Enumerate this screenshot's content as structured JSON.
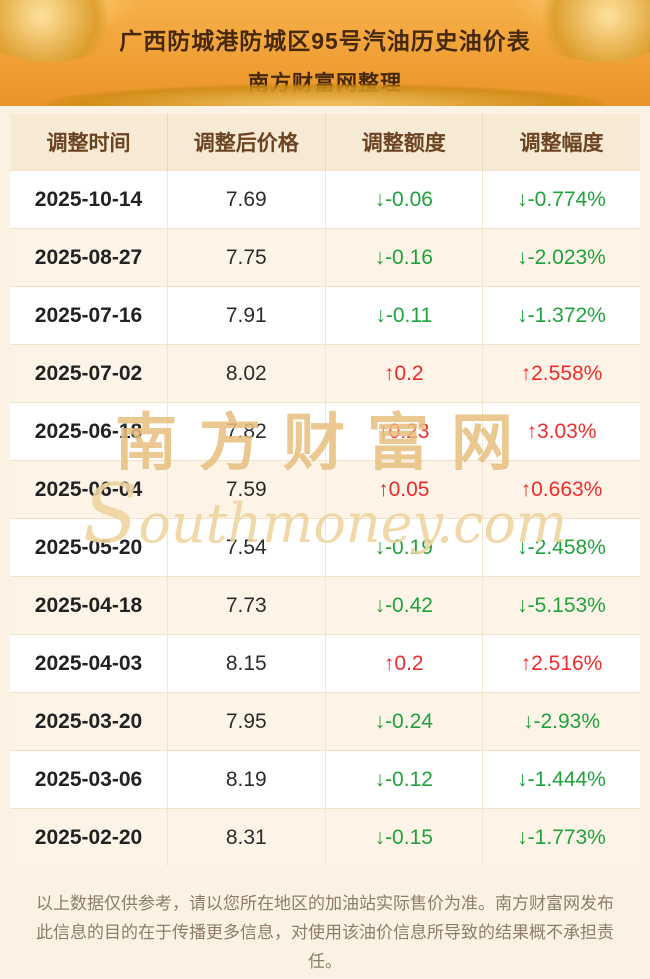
{
  "header": {
    "title": "广西防城港防城区95号汽油历史油价表",
    "subtitle": "南方财富网整理"
  },
  "table": {
    "columns": [
      "调整时间",
      "调整后价格",
      "调整额度",
      "调整幅度"
    ],
    "rows": [
      {
        "date": "2025-10-14",
        "price": "7.69",
        "change": "↓-0.06",
        "percent": "↓-0.774%",
        "direction": "down"
      },
      {
        "date": "2025-08-27",
        "price": "7.75",
        "change": "↓-0.16",
        "percent": "↓-2.023%",
        "direction": "down"
      },
      {
        "date": "2025-07-16",
        "price": "7.91",
        "change": "↓-0.11",
        "percent": "↓-1.372%",
        "direction": "down"
      },
      {
        "date": "2025-07-02",
        "price": "8.02",
        "change": "↑0.2",
        "percent": "↑2.558%",
        "direction": "up"
      },
      {
        "date": "2025-06-18",
        "price": "7.82",
        "change": "↑0.23",
        "percent": "↑3.03%",
        "direction": "up"
      },
      {
        "date": "2025-06-04",
        "price": "7.59",
        "change": "↑0.05",
        "percent": "↑0.663%",
        "direction": "up"
      },
      {
        "date": "2025-05-20",
        "price": "7.54",
        "change": "↓-0.19",
        "percent": "↓-2.458%",
        "direction": "down"
      },
      {
        "date": "2025-04-18",
        "price": "7.73",
        "change": "↓-0.42",
        "percent": "↓-5.153%",
        "direction": "down"
      },
      {
        "date": "2025-04-03",
        "price": "8.15",
        "change": "↑0.2",
        "percent": "↑2.516%",
        "direction": "up"
      },
      {
        "date": "2025-03-20",
        "price": "7.95",
        "change": "↓-0.24",
        "percent": "↓-2.93%",
        "direction": "down"
      },
      {
        "date": "2025-03-06",
        "price": "8.19",
        "change": "↓-0.12",
        "percent": "↓-1.444%",
        "direction": "down"
      },
      {
        "date": "2025-02-20",
        "price": "8.31",
        "change": "↓-0.15",
        "percent": "↓-1.773%",
        "direction": "down"
      }
    ]
  },
  "watermark": {
    "cn": "南方财富网",
    "en": "Southmoney.com"
  },
  "footer": {
    "text": "以上数据仅供参考，请以您所在地区的加油站实际售价为准。南方财富网发布此信息的目的在于传播更多信息，对使用该油价信息所导致的结果概不承担责任。"
  },
  "colors": {
    "banner_orange": "#f0a136",
    "gold_ornament": "#d99b28",
    "up_red": "#ef2b2b",
    "down_green": "#1fa23c",
    "header_cell_bg": "#f7ead4",
    "page_cream": "#fbf2e3"
  }
}
